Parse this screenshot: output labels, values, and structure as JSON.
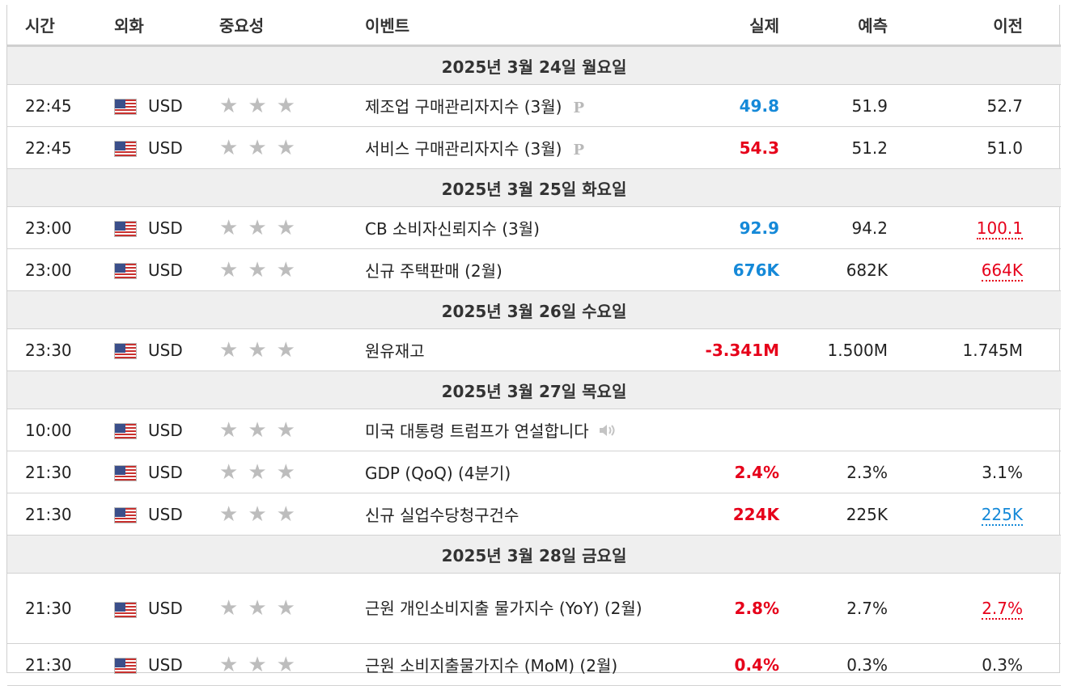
{
  "headers": {
    "time": "시간",
    "currency": "외화",
    "importance": "중요성",
    "event": "이벤트",
    "actual": "실제",
    "forecast": "예측",
    "previous": "이전"
  },
  "days": [
    {
      "label": "2025년 3월 24일 월요일",
      "rows": [
        {
          "time": "22:45",
          "cur": "USD",
          "event": "제조업 구매관리자지수 (3월)",
          "icon": "preliminary",
          "actual": "49.8",
          "actual_color": "blue",
          "forecast": "51.9",
          "previous": "52.7",
          "prev_style": "plain"
        },
        {
          "time": "22:45",
          "cur": "USD",
          "event": "서비스 구매관리자지수 (3월)",
          "icon": "preliminary",
          "actual": "54.3",
          "actual_color": "red",
          "forecast": "51.2",
          "previous": "51.0",
          "prev_style": "plain"
        }
      ]
    },
    {
      "label": "2025년 3월 25일 화요일",
      "rows": [
        {
          "time": "23:00",
          "cur": "USD",
          "event": "CB 소비자신뢰지수 (3월)",
          "icon": "",
          "actual": "92.9",
          "actual_color": "blue",
          "forecast": "94.2",
          "previous": "100.1",
          "prev_style": "revised-red"
        },
        {
          "time": "23:00",
          "cur": "USD",
          "event": "신규 주택판매 (2월)",
          "icon": "",
          "actual": "676K",
          "actual_color": "blue",
          "forecast": "682K",
          "previous": "664K",
          "prev_style": "revised-red"
        }
      ]
    },
    {
      "label": "2025년 3월 26일 수요일",
      "rows": [
        {
          "time": "23:30",
          "cur": "USD",
          "event": "원유재고",
          "icon": "",
          "actual": "-3.341M",
          "actual_color": "red",
          "forecast": "1.500M",
          "previous": "1.745M",
          "prev_style": "plain"
        }
      ]
    },
    {
      "label": "2025년 3월 27일 목요일",
      "rows": [
        {
          "time": "10:00",
          "cur": "USD",
          "event": "미국 대통령 트럼프가 연설합니다",
          "icon": "speaker",
          "actual": "",
          "actual_color": "",
          "forecast": "",
          "previous": "",
          "prev_style": "plain"
        },
        {
          "time": "21:30",
          "cur": "USD",
          "event": "GDP (QoQ) (4분기)",
          "icon": "",
          "actual": "2.4%",
          "actual_color": "red",
          "forecast": "2.3%",
          "previous": "3.1%",
          "prev_style": "plain"
        },
        {
          "time": "21:30",
          "cur": "USD",
          "event": "신규 실업수당청구건수",
          "icon": "",
          "actual": "224K",
          "actual_color": "red",
          "forecast": "225K",
          "previous": "225K",
          "prev_style": "revised-blue"
        }
      ]
    },
    {
      "label": "2025년 3월 28일 금요일",
      "rows": [
        {
          "time": "21:30",
          "cur": "USD",
          "event": "근원 개인소비지출 물가지수 (YoY) (2월)",
          "icon": "",
          "actual": "2.8%",
          "actual_color": "red",
          "forecast": "2.7%",
          "previous": "2.7%",
          "prev_style": "revised-red",
          "tall": true
        },
        {
          "time": "21:30",
          "cur": "USD",
          "event": "근원 소비지출물가지수 (MoM) (2월)",
          "icon": "",
          "actual": "0.4%",
          "actual_color": "red",
          "forecast": "0.3%",
          "previous": "0.3%",
          "prev_style": "plain"
        }
      ]
    }
  ],
  "preliminary_glyph": "P",
  "star_glyph": "★",
  "colors": {
    "red": "#e6001a",
    "blue": "#1589d8",
    "star": "#bdbdbd",
    "day_bg": "#efefef"
  }
}
